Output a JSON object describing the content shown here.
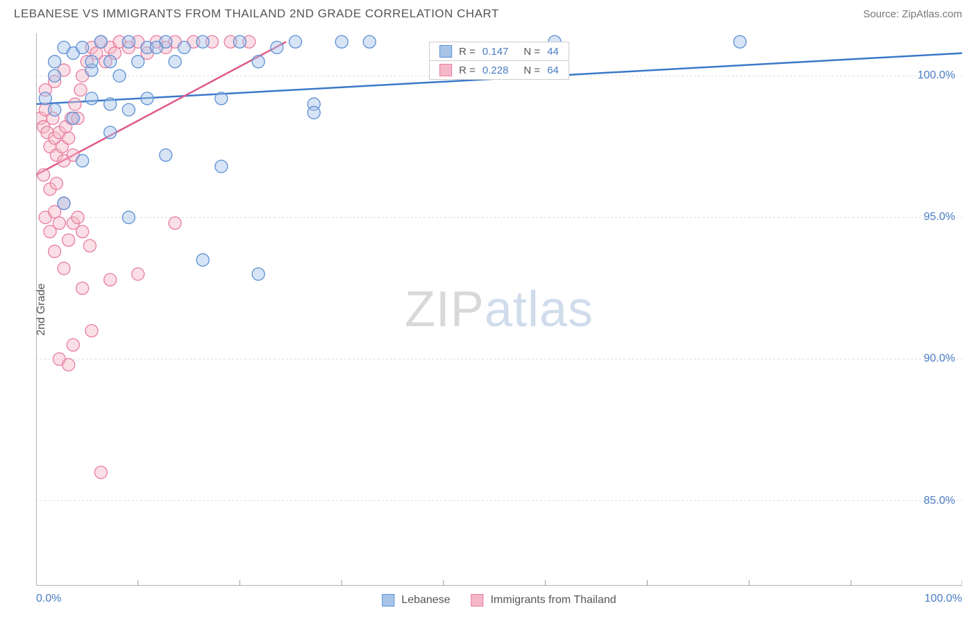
{
  "header": {
    "title": "LEBANESE VS IMMIGRANTS FROM THAILAND 2ND GRADE CORRELATION CHART",
    "source": "Source: ZipAtlas.com"
  },
  "chart": {
    "type": "scatter",
    "y_label": "2nd Grade",
    "xlim": [
      0,
      100
    ],
    "ylim": [
      82,
      101.5
    ],
    "x_ticks": [
      0,
      100
    ],
    "x_tick_labels": [
      "0.0%",
      "100.0%"
    ],
    "x_minor_ticks": [
      11,
      22,
      33,
      44,
      55,
      66,
      77,
      88
    ],
    "y_ticks": [
      85,
      90,
      95,
      100
    ],
    "y_tick_labels": [
      "85.0%",
      "90.0%",
      "95.0%",
      "100.0%"
    ],
    "background_color": "#ffffff",
    "grid_color": "#dddddd",
    "axis_color": "#999999",
    "marker_radius": 9,
    "marker_opacity": 0.45,
    "series": [
      {
        "name": "Lebanese",
        "fill_color": "#a7c4e8",
        "stroke_color": "#5b8fd4",
        "line_color": "#3b78c9",
        "r": "0.147",
        "n": "44",
        "trend": {
          "x1": 0,
          "y1": 99.0,
          "x2": 100,
          "y2": 100.8
        },
        "points": [
          [
            1,
            99.2
          ],
          [
            2,
            100.5
          ],
          [
            3,
            101
          ],
          [
            4,
            100.8
          ],
          [
            5,
            101
          ],
          [
            6,
            100.2
          ],
          [
            7,
            101.2
          ],
          [
            8,
            100.5
          ],
          [
            9,
            100
          ],
          [
            10,
            101.2
          ],
          [
            11,
            100.5
          ],
          [
            12,
            101
          ],
          [
            14,
            101.2
          ],
          [
            15,
            100.5
          ],
          [
            16,
            101
          ],
          [
            18,
            101.2
          ],
          [
            20,
            99.2
          ],
          [
            22,
            101.2
          ],
          [
            24,
            100.5
          ],
          [
            26,
            101
          ],
          [
            28,
            101.2
          ],
          [
            30,
            99.0
          ],
          [
            33,
            101.2
          ],
          [
            36,
            101.2
          ],
          [
            56,
            101.2
          ],
          [
            76,
            101.2
          ],
          [
            2,
            98.8
          ],
          [
            4,
            98.5
          ],
          [
            6,
            99.2
          ],
          [
            8,
            99.0
          ],
          [
            10,
            98.8
          ],
          [
            12,
            99.2
          ],
          [
            2,
            100
          ],
          [
            6,
            100.5
          ],
          [
            3,
            95.5
          ],
          [
            5,
            97.0
          ],
          [
            10,
            95.0
          ],
          [
            14,
            97.2
          ],
          [
            18,
            93.5
          ],
          [
            20,
            96.8
          ],
          [
            24,
            93.0
          ],
          [
            30,
            98.7
          ],
          [
            13,
            101
          ],
          [
            8,
            98
          ]
        ]
      },
      {
        "name": "Immigrants from Thailand",
        "fill_color": "#f5b8c8",
        "stroke_color": "#e87ca0",
        "line_color": "#e05a88",
        "r": "0.228",
        "n": "64",
        "trend": {
          "x1": 0,
          "y1": 96.5,
          "x2": 27,
          "y2": 101.2
        },
        "points": [
          [
            0.5,
            98.5
          ],
          [
            0.8,
            98.2
          ],
          [
            1,
            98.8
          ],
          [
            1.2,
            98.0
          ],
          [
            1.5,
            97.5
          ],
          [
            1.8,
            98.5
          ],
          [
            2,
            97.8
          ],
          [
            2.2,
            97.2
          ],
          [
            2.5,
            98.0
          ],
          [
            2.8,
            97.5
          ],
          [
            3,
            97.0
          ],
          [
            3.2,
            98.2
          ],
          [
            3.5,
            97.8
          ],
          [
            3.8,
            98.5
          ],
          [
            4,
            97.2
          ],
          [
            4.2,
            99.0
          ],
          [
            4.5,
            98.5
          ],
          [
            4.8,
            99.5
          ],
          [
            5,
            100
          ],
          [
            5.5,
            100.5
          ],
          [
            6,
            101
          ],
          [
            6.5,
            100.8
          ],
          [
            7,
            101.2
          ],
          [
            7.5,
            100.5
          ],
          [
            8,
            101
          ],
          [
            8.5,
            100.8
          ],
          [
            9,
            101.2
          ],
          [
            10,
            101
          ],
          [
            11,
            101.2
          ],
          [
            12,
            100.8
          ],
          [
            13,
            101.2
          ],
          [
            14,
            101
          ],
          [
            15,
            101.2
          ],
          [
            17,
            101.2
          ],
          [
            19,
            101.2
          ],
          [
            21,
            101.2
          ],
          [
            23,
            101.2
          ],
          [
            1,
            95.0
          ],
          [
            1.5,
            94.5
          ],
          [
            2,
            95.2
          ],
          [
            2.5,
            94.8
          ],
          [
            3,
            95.5
          ],
          [
            3.5,
            94.2
          ],
          [
            4,
            94.8
          ],
          [
            4.5,
            95.0
          ],
          [
            5,
            94.5
          ],
          [
            5.8,
            94.0
          ],
          [
            2,
            93.8
          ],
          [
            3,
            93.2
          ],
          [
            4,
            90.5
          ],
          [
            5,
            92.5
          ],
          [
            6,
            91.0
          ],
          [
            8,
            92.8
          ],
          [
            11,
            93.0
          ],
          [
            15,
            94.8
          ],
          [
            2.5,
            90.0
          ],
          [
            3.5,
            89.8
          ],
          [
            7,
            86.0
          ],
          [
            1,
            99.5
          ],
          [
            2,
            99.8
          ],
          [
            3,
            100.2
          ],
          [
            0.8,
            96.5
          ],
          [
            1.5,
            96.0
          ],
          [
            2.2,
            96.2
          ]
        ]
      }
    ],
    "legend_top": {
      "rows": [
        {
          "swatch_fill": "#a7c4e8",
          "swatch_stroke": "#5b8fd4",
          "r_label": "R = ",
          "r_val": "0.147",
          "n_label": "N = ",
          "n_val": "44"
        },
        {
          "swatch_fill": "#f5b8c8",
          "swatch_stroke": "#e87ca0",
          "r_label": "R = ",
          "r_val": "0.228",
          "n_label": "N = ",
          "n_val": "64"
        }
      ]
    },
    "legend_bottom": [
      {
        "swatch_fill": "#a7c4e8",
        "swatch_stroke": "#5b8fd4",
        "label": "Lebanese"
      },
      {
        "swatch_fill": "#f5b8c8",
        "swatch_stroke": "#e87ca0",
        "label": "Immigrants from Thailand"
      }
    ],
    "watermark": {
      "zip": "ZIP",
      "atlas": "atlas"
    }
  }
}
